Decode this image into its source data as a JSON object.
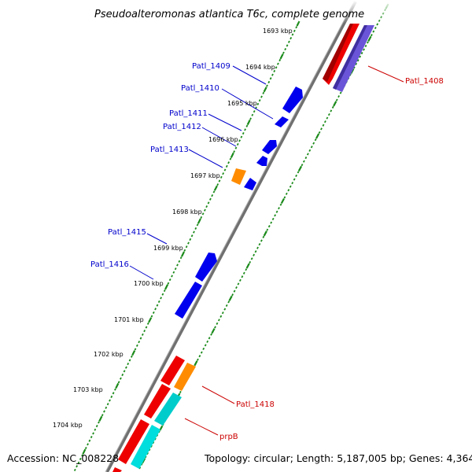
{
  "title": "Pseudoalteromonas atlantica T6c, complete genome",
  "footer": {
    "accession": "Accession: NC_008228",
    "topology": "Topology: circular; Length: 5,187,005 bp; Genes: 4,364"
  },
  "kbp_ticks": [
    "1693 kbp",
    "1694 kbp",
    "1695 kbp",
    "1696 kbp",
    "1697 kbp",
    "1698 kbp",
    "1699 kbp",
    "1700 kbp",
    "1701 kbp",
    "1702 kbp",
    "1703 kbp",
    "1704 kbp"
  ],
  "gene_labels": [
    {
      "id": "patl1408",
      "text": "Patl_1408",
      "color": "red"
    },
    {
      "id": "patl1409",
      "text": "Patl_1409",
      "color": "blue"
    },
    {
      "id": "patl1410",
      "text": "Patl_1410",
      "color": "blue"
    },
    {
      "id": "patl1411",
      "text": "Patl_1411",
      "color": "blue"
    },
    {
      "id": "patl1412",
      "text": "Patl_1412",
      "color": "blue"
    },
    {
      "id": "patl1413",
      "text": "Patl_1413",
      "color": "blue"
    },
    {
      "id": "patl1415",
      "text": "Patl_1415",
      "color": "blue"
    },
    {
      "id": "patl1416",
      "text": "Patl_1416",
      "color": "blue"
    },
    {
      "id": "patl1418",
      "text": "Patl_1418",
      "color": "red"
    },
    {
      "id": "prpb",
      "text": "prpB",
      "color": "red"
    }
  ],
  "colors": {
    "backbone": "#808080",
    "tick_green": "#1a8a1a",
    "gene_blue": "#0000ee",
    "gene_red": "#ee0000",
    "gene_orange": "#ff8c00",
    "gene_cyan": "#00cccc",
    "gene_purple": "#6a55d8",
    "label_blue": "#0000cc",
    "label_red": "#cc0000"
  }
}
